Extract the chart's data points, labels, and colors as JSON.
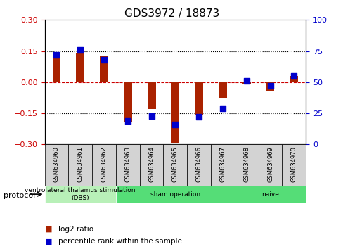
{
  "title": "GDS3972 / 18873",
  "samples": [
    "GSM634960",
    "GSM634961",
    "GSM634962",
    "GSM634963",
    "GSM634964",
    "GSM634965",
    "GSM634966",
    "GSM634967",
    "GSM634968",
    "GSM634969",
    "GSM634970"
  ],
  "log2_ratio": [
    0.138,
    0.142,
    0.125,
    -0.19,
    -0.13,
    -0.295,
    -0.16,
    -0.08,
    -0.01,
    -0.045,
    0.03
  ],
  "percentile_rank": [
    72,
    76,
    68,
    19,
    23,
    16,
    22,
    29,
    51,
    47,
    55
  ],
  "ylim_left": [
    -0.3,
    0.3
  ],
  "ylim_right": [
    0,
    100
  ],
  "yticks_left": [
    -0.3,
    -0.15,
    0,
    0.15,
    0.3
  ],
  "yticks_right": [
    0,
    25,
    50,
    75,
    100
  ],
  "groups": [
    {
      "label": "ventrolateral thalamus stimulation\n(DBS)",
      "start": 0,
      "end": 3,
      "color": "#90EE90"
    },
    {
      "label": "sham operation",
      "start": 3,
      "end": 8,
      "color": "#00CC44"
    },
    {
      "label": "naive",
      "start": 8,
      "end": 11,
      "color": "#00CC44"
    }
  ],
  "bar_color": "#AA2200",
  "dot_color": "#0000CC",
  "bar_width": 0.35,
  "dot_size": 40,
  "hline_color": "#CC0000",
  "grid_color": "#000000",
  "bg_color": "#FFFFFF",
  "protocol_label": "protocol",
  "legend_items": [
    "log2 ratio",
    "percentile rank within the sample"
  ]
}
